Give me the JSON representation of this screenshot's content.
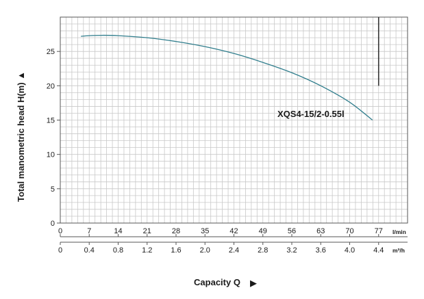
{
  "chart_data": {
    "type": "line",
    "title": "",
    "ylabel": "Total manometric head H(m)",
    "xlabel": "Capacity Q",
    "y_axis": {
      "range": [
        0,
        30
      ],
      "ticks": [
        0,
        5,
        10,
        15,
        20,
        25
      ]
    },
    "x_axis_primary": {
      "unit": "l/min",
      "range": [
        0,
        84
      ],
      "ticks": [
        0,
        7,
        14,
        21,
        28,
        35,
        42,
        49,
        56,
        63,
        70,
        77
      ]
    },
    "x_axis_secondary": {
      "unit": "m³/h",
      "ticks": [
        "0",
        "0.4",
        "0.8",
        "1.2",
        "1.6",
        "2.0",
        "2.4",
        "2.8",
        "3.2",
        "3.6",
        "4.0",
        "4.4"
      ]
    },
    "grid": true,
    "series": [
      {
        "name": "XQS4-15/2-0.55l",
        "x": [
          5,
          7,
          10,
          14,
          21,
          28,
          35,
          42,
          49,
          56,
          63,
          70,
          75.5
        ],
        "y": [
          27.2,
          27.3,
          27.35,
          27.3,
          27.0,
          26.45,
          25.7,
          24.7,
          23.4,
          21.9,
          20.0,
          17.6,
          15.0
        ]
      }
    ],
    "marker_line": {
      "x": 77,
      "y_range": [
        20,
        30
      ]
    },
    "colors": {
      "curve": "#2f7d8c",
      "grid": "#c8c8c8",
      "axis": "#555555",
      "marker": "#333333"
    }
  }
}
